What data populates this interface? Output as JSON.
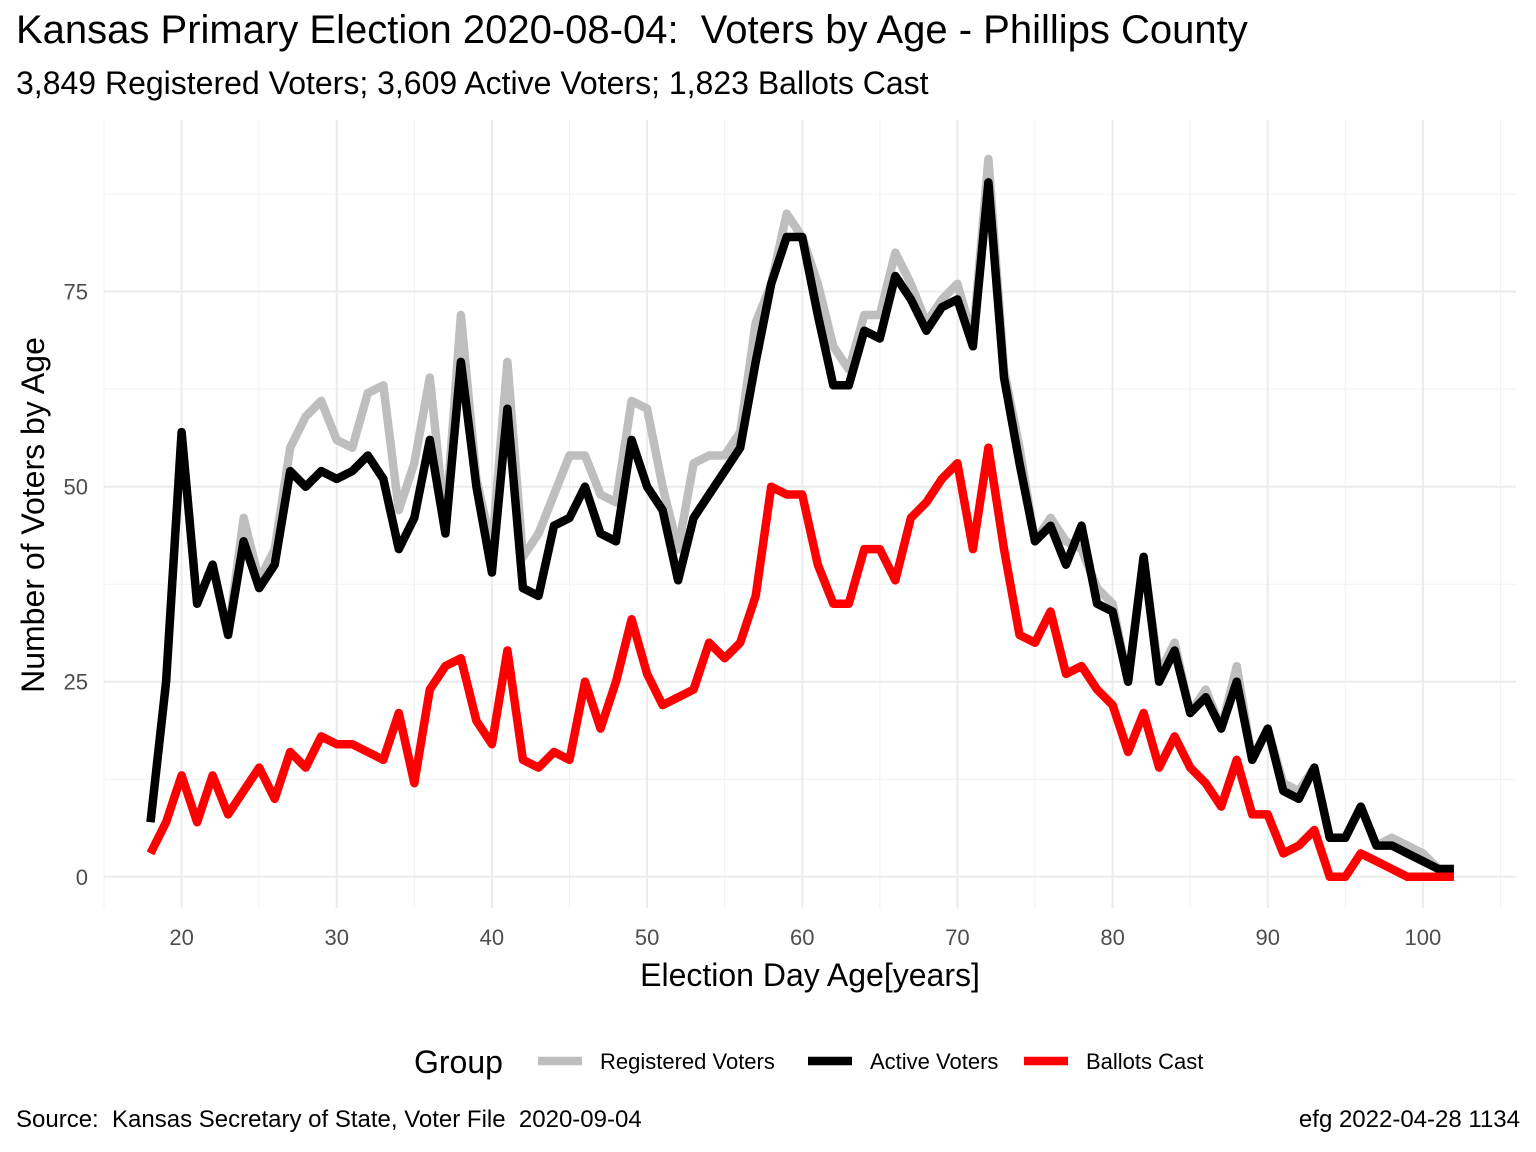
{
  "chart_data": {
    "type": "line",
    "title": "Kansas Primary Election 2020-08-04:  Voters by Age - Phillips County",
    "subtitle": "3,849 Registered Voters; 3,609 Active Voters; 1,823 Ballots Cast",
    "xlabel": "Election Day Age[years]",
    "ylabel": "Number of Voters by Age",
    "caption_left": "Source:  Kansas Secretary of State, Voter File  2020-09-04",
    "caption_right": "efg 2022-04-28 1134",
    "legend_title": "Group",
    "legend_position": "bottom",
    "grid": true,
    "xlim": [
      15,
      106
    ],
    "ylim": [
      -4,
      97
    ],
    "xticks": [
      20,
      30,
      40,
      50,
      60,
      70,
      80,
      90,
      100
    ],
    "yticks": [
      0,
      25,
      50,
      75
    ],
    "x": [
      18,
      19,
      20,
      21,
      22,
      23,
      24,
      25,
      26,
      27,
      28,
      29,
      30,
      31,
      32,
      33,
      34,
      35,
      36,
      37,
      38,
      39,
      40,
      41,
      42,
      43,
      44,
      45,
      46,
      47,
      48,
      49,
      50,
      51,
      52,
      53,
      54,
      55,
      56,
      57,
      58,
      59,
      60,
      61,
      62,
      63,
      64,
      65,
      66,
      67,
      68,
      69,
      70,
      71,
      72,
      73,
      74,
      75,
      76,
      77,
      78,
      79,
      80,
      81,
      82,
      83,
      84,
      85,
      86,
      87,
      88,
      89,
      90,
      91,
      92,
      93,
      94,
      95,
      96,
      97,
      98,
      99,
      100,
      101,
      102
    ],
    "series": [
      {
        "name": "Registered Voters",
        "color": "#bebebe",
        "values": [
          7,
          25,
          57,
          35,
          40,
          31,
          46,
          38,
          42,
          55,
          59,
          61,
          56,
          55,
          62,
          63,
          47,
          53,
          64,
          45,
          72,
          51,
          42,
          66,
          41,
          44,
          49,
          54,
          54,
          49,
          48,
          61,
          60,
          50,
          42,
          53,
          54,
          54,
          57,
          71,
          76,
          85,
          82,
          76,
          68,
          65,
          72,
          72,
          80,
          76,
          71,
          74,
          76,
          69,
          92,
          65,
          55,
          43,
          46,
          43,
          42,
          37,
          35,
          25,
          41,
          26,
          30,
          21,
          24,
          19,
          27,
          15,
          19,
          12,
          11,
          14,
          5,
          5,
          9,
          4,
          5,
          4,
          3,
          1,
          1
        ]
      },
      {
        "name": "Active Voters",
        "color": "#000000",
        "values": [
          7,
          25,
          57,
          35,
          40,
          31,
          43,
          37,
          40,
          52,
          50,
          52,
          51,
          52,
          54,
          51,
          42,
          46,
          56,
          44,
          66,
          50,
          39,
          60,
          37,
          36,
          45,
          46,
          50,
          44,
          43,
          56,
          50,
          47,
          38,
          46,
          49,
          52,
          55,
          66,
          76,
          82,
          82,
          72,
          63,
          63,
          70,
          69,
          77,
          74,
          70,
          73,
          74,
          68,
          89,
          64,
          53,
          43,
          45,
          40,
          45,
          35,
          34,
          25,
          41,
          25,
          29,
          21,
          23,
          19,
          25,
          15,
          19,
          11,
          10,
          14,
          5,
          5,
          9,
          4,
          4,
          3,
          2,
          1,
          1
        ]
      },
      {
        "name": "Ballots Cast",
        "color": "#ff0000",
        "values": [
          3,
          7,
          13,
          7,
          13,
          8,
          11,
          14,
          10,
          16,
          14,
          18,
          17,
          17,
          16,
          15,
          21,
          12,
          24,
          27,
          28,
          20,
          17,
          29,
          15,
          14,
          16,
          15,
          25,
          19,
          25,
          33,
          26,
          22,
          23,
          24,
          30,
          28,
          30,
          36,
          50,
          49,
          49,
          40,
          35,
          35,
          42,
          42,
          38,
          46,
          48,
          51,
          53,
          42,
          55,
          42,
          31,
          30,
          34,
          26,
          27,
          24,
          22,
          16,
          21,
          14,
          18,
          14,
          12,
          9,
          15,
          8,
          8,
          3,
          4,
          6,
          0,
          0,
          3,
          2,
          1,
          0,
          0,
          0,
          0
        ]
      }
    ]
  }
}
